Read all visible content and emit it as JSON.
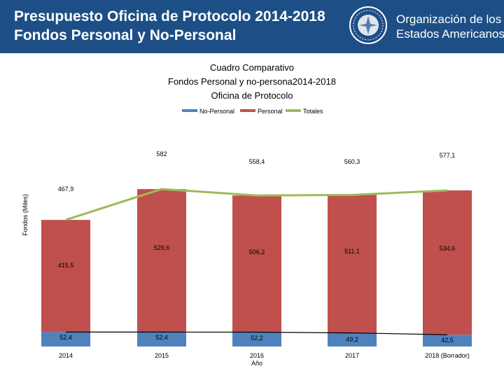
{
  "header": {
    "title_line1": "Presupuesto Oficina de Protocolo 2014-2018",
    "title_line2": "Fondos Personal y No-Personal",
    "org_line1": "Organización de los",
    "org_line2": "Estados Americanos"
  },
  "colors": {
    "header_bg": "#1d4f86",
    "no_personal": "#4f81bd",
    "personal": "#c0504d",
    "totales": "#9bbb59",
    "connector": "#000000"
  },
  "chart_data": {
    "type": "bar",
    "stacked": true,
    "title_lines": [
      "Cuadro Comparativo",
      "Fondos Personal y no-persona2014-2018",
      "Oficina de Protocolo"
    ],
    "categories": [
      "2014",
      "2015",
      "2016",
      "2017",
      "2018 (Borrador)"
    ],
    "xlabel": "Año",
    "ylabel": "Fondos (Miles)",
    "legend_position": "top-center",
    "series": [
      {
        "name": "No-Personal",
        "values": [
          52.4,
          52.4,
          52.2,
          49.2,
          42.5
        ],
        "labels": [
          "52,4",
          "52,4",
          "52,2",
          "49,2",
          "42,5"
        ]
      },
      {
        "name": "Personal",
        "values": [
          415.5,
          529.6,
          506.2,
          511.1,
          534.6
        ],
        "labels": [
          "415,5",
          "529,6",
          "506,2",
          "511,1",
          "534,6"
        ]
      },
      {
        "name": "Totales",
        "type": "line",
        "values": [
          467.9,
          582,
          558.4,
          560.3,
          577.1
        ],
        "labels": [
          "467,9",
          "582",
          "558,4",
          "560,3",
          "577,1"
        ]
      }
    ]
  }
}
